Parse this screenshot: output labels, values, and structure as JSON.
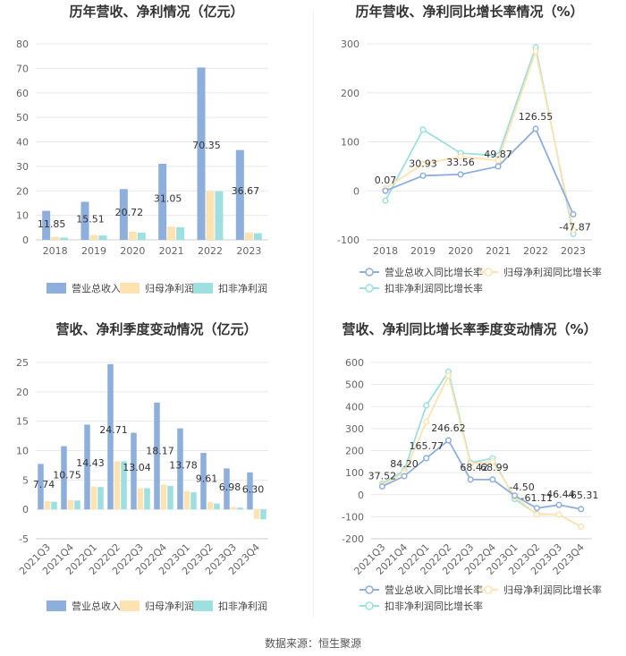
{
  "charts": {
    "annual": {
      "title": "历年营收、净利情况（亿元）",
      "chart_data": {
        "type": "bar",
        "categories": [
          "2018",
          "2019",
          "2020",
          "2021",
          "2022",
          "2023"
        ],
        "ylim": [
          0,
          80
        ],
        "yticks": [
          0,
          10,
          20,
          30,
          40,
          50,
          60,
          70,
          80
        ],
        "series": [
          {
            "name": "营业总收入",
            "values": [
              11.85,
              15.51,
              20.72,
              31.05,
              70.35,
              36.67
            ],
            "color": "#8eaedc",
            "labels": [
              "11.85",
              "15.51",
              "20.72",
              "31.05",
              "70.35",
              "36.67"
            ]
          },
          {
            "name": "归母净利润",
            "values": [
              1.2,
              2.0,
              3.3,
              5.4,
              19.8,
              3.0
            ],
            "color": "#fde3b1"
          },
          {
            "name": "扣非净利润",
            "values": [
              0.9,
              1.8,
              3.0,
              5.1,
              19.8,
              2.7
            ],
            "color": "#9edfdf"
          }
        ],
        "legend_position": "bottom"
      }
    },
    "annual_growth": {
      "title": "历年营收、净利同比增长率情况（%）",
      "chart_data": {
        "type": "line",
        "categories": [
          "2018",
          "2019",
          "2020",
          "2021",
          "2022",
          "2023"
        ],
        "ylim": [
          -100,
          300
        ],
        "yticks": [
          -100,
          0,
          100,
          200,
          300
        ],
        "series": [
          {
            "name": "营业总收入同比增长率",
            "values": [
              0.07,
              30.93,
              33.56,
              49.87,
              126.55,
              -47.87
            ],
            "color": "#8eaedc",
            "labels": [
              "0.07",
              "30.93",
              "33.56",
              "49.87",
              "126.55",
              "-47.87"
            ]
          },
          {
            "name": "归母净利润同比增长率",
            "values": [
              5,
              55,
              70,
              62,
              285,
              -80
            ],
            "color": "#fde3b1"
          },
          {
            "name": "扣非净利润同比增长率",
            "values": [
              -20,
              125,
              77,
              72,
              293,
              -88
            ],
            "color": "#9edfdf"
          }
        ],
        "legend_position": "bottom"
      }
    },
    "quarterly": {
      "title": "营收、净利季度变动情况（亿元）",
      "chart_data": {
        "type": "bar",
        "categories": [
          "2021Q3",
          "2021Q4",
          "2022Q1",
          "2022Q2",
          "2022Q3",
          "2022Q4",
          "2023Q1",
          "2023Q2",
          "2023Q3",
          "2023Q4"
        ],
        "ylim": [
          -5,
          25
        ],
        "yticks": [
          -5,
          0,
          5,
          10,
          15,
          20,
          25
        ],
        "series": [
          {
            "name": "营业总收入",
            "values": [
              7.74,
              10.75,
              14.43,
              24.71,
              13.04,
              18.17,
              13.78,
              9.61,
              6.98,
              6.3
            ],
            "color": "#8eaedc",
            "labels": [
              "7.74",
              "10.75",
              "14.43",
              "24.71",
              "13.04",
              "18.17",
              "13.78",
              "9.61",
              "6.98",
              "6.30"
            ]
          },
          {
            "name": "归母净利润",
            "values": [
              1.4,
              1.6,
              3.9,
              8.2,
              3.6,
              4.2,
              3.1,
              1.2,
              0.4,
              -1.6
            ],
            "color": "#fde3b1"
          },
          {
            "name": "扣非净利润",
            "values": [
              1.3,
              1.5,
              3.8,
              8.2,
              3.6,
              4.0,
              2.9,
              1.0,
              0.3,
              -1.7
            ],
            "color": "#9edfdf"
          }
        ],
        "legend_position": "bottom"
      }
    },
    "quarterly_growth": {
      "title": "营收、净利同比增长率季度变动情况（%）",
      "chart_data": {
        "type": "line",
        "categories": [
          "2021Q3",
          "2021Q4",
          "2022Q1",
          "2022Q2",
          "2022Q3",
          "2022Q4",
          "2023Q1",
          "2023Q2",
          "2023Q3",
          "2023Q4"
        ],
        "ylim": [
          -200,
          600
        ],
        "yticks": [
          -200,
          -100,
          0,
          100,
          200,
          300,
          400,
          500,
          600
        ],
        "series": [
          {
            "name": "营业总收入同比增长率",
            "values": [
              37.52,
              84.2,
              165.77,
              246.62,
              68.42,
              68.99,
              -4.5,
              -61.11,
              -46.44,
              -65.31
            ],
            "color": "#8eaedc",
            "labels": [
              "37.52",
              "84.20",
              "165.77",
              "246.62",
              "68.42",
              "68.99",
              "-4.50",
              "-61.11",
              "-46.44",
              "-65.31"
            ]
          },
          {
            "name": "归母净利润同比增长率",
            "values": [
              45,
              100,
              330,
              540,
              140,
              150,
              -10,
              -90,
              -90,
              -145
            ],
            "color": "#fde3b1"
          },
          {
            "name": "扣非净利润同比增长率",
            "values": [
              50,
              110,
              405,
              558,
              145,
              165,
              -20,
              -88,
              -90,
              -145
            ],
            "color": "#9edfdf"
          }
        ],
        "legend_position": "bottom"
      }
    }
  },
  "source": "数据来源：恒生聚源"
}
